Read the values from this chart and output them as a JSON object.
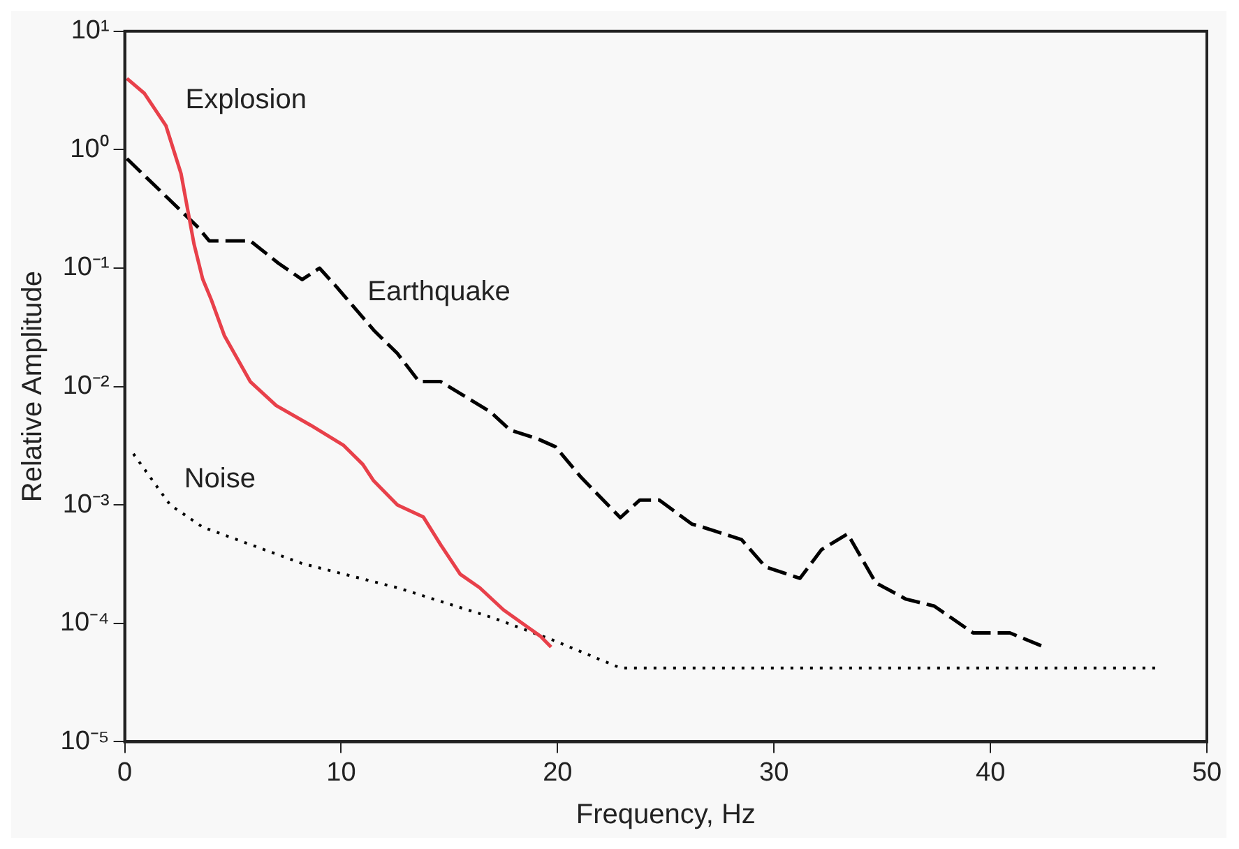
{
  "chart_data": {
    "type": "line",
    "xlabel": "Frequency, Hz",
    "ylabel": "Relative Amplitude",
    "xlim": [
      0,
      50
    ],
    "ylim": [
      1e-05,
      10
    ],
    "xticks": [
      0,
      10,
      20,
      30,
      40,
      50
    ],
    "yticks": [
      {
        "value": 10,
        "label": "10¹"
      },
      {
        "value": 1,
        "label": "10⁰"
      },
      {
        "value": 0.1,
        "label": "10⁻¹"
      },
      {
        "value": 0.01,
        "label": "10⁻²"
      },
      {
        "value": 0.001,
        "label": "10⁻³"
      },
      {
        "value": 0.0001,
        "label": "10⁻⁴"
      },
      {
        "value": 1e-05,
        "label": "10⁻⁵"
      }
    ],
    "log": "y",
    "grid": false,
    "legend": false,
    "marker": "none",
    "series": [
      {
        "name": "Explosion",
        "color": "#e8404a",
        "line_style": "solid",
        "x": [
          0.1,
          0.9,
          1.9,
          2.6,
          3.2,
          3.6,
          4,
          4.6,
          5.8,
          7,
          8.6,
          10.1,
          11,
          11.5,
          12.6,
          13.8,
          14.6,
          15.5,
          16.4,
          17.5,
          19.2,
          19.7
        ],
        "values": [
          4,
          3,
          1.6,
          0.63,
          0.16,
          0.081,
          0.054,
          0.027,
          0.011,
          0.0069,
          0.0047,
          0.0032,
          0.0022,
          0.0016,
          0.001,
          0.00079,
          0.00046,
          0.00026,
          0.0002,
          0.00013,
          7.8e-05,
          6.3e-05
        ]
      },
      {
        "name": "Earthquake",
        "color": "#000000",
        "line_style": "dashed",
        "x": [
          0.1,
          3.4,
          3.9,
          5.8,
          7.1,
          8.2,
          9,
          9.8,
          11.5,
          12.6,
          13.6,
          14.6,
          16.9,
          17.8,
          19.1,
          19.9,
          21.1,
          22.9,
          23.8,
          24.7,
          26.2,
          26.7,
          28.5,
          29.6,
          31.2,
          32.2,
          33.4,
          34.7,
          36.1,
          37.4,
          39.2,
          40.9,
          42.5
        ],
        "values": [
          0.84,
          0.22,
          0.17,
          0.17,
          0.11,
          0.08,
          0.1,
          0.069,
          0.03,
          0.019,
          0.011,
          0.011,
          0.0061,
          0.0043,
          0.0036,
          0.0031,
          0.0017,
          0.00078,
          0.0011,
          0.0011,
          0.00069,
          0.00065,
          0.00051,
          0.0003,
          0.00024,
          0.00042,
          0.00057,
          0.00022,
          0.00016,
          0.00014,
          8.3e-05,
          8.3e-05,
          6.3e-05
        ]
      },
      {
        "name": "Noise",
        "color": "#000000",
        "line_style": "dotted",
        "x": [
          0.4,
          2.1,
          3.6,
          8.2,
          12.6,
          17.1,
          19.8,
          22.9,
          47.8
        ],
        "values": [
          0.0027,
          0.001,
          0.00065,
          0.00032,
          0.0002,
          0.00011,
          7.2e-05,
          4.2e-05,
          4.2e-05
        ]
      }
    ]
  }
}
